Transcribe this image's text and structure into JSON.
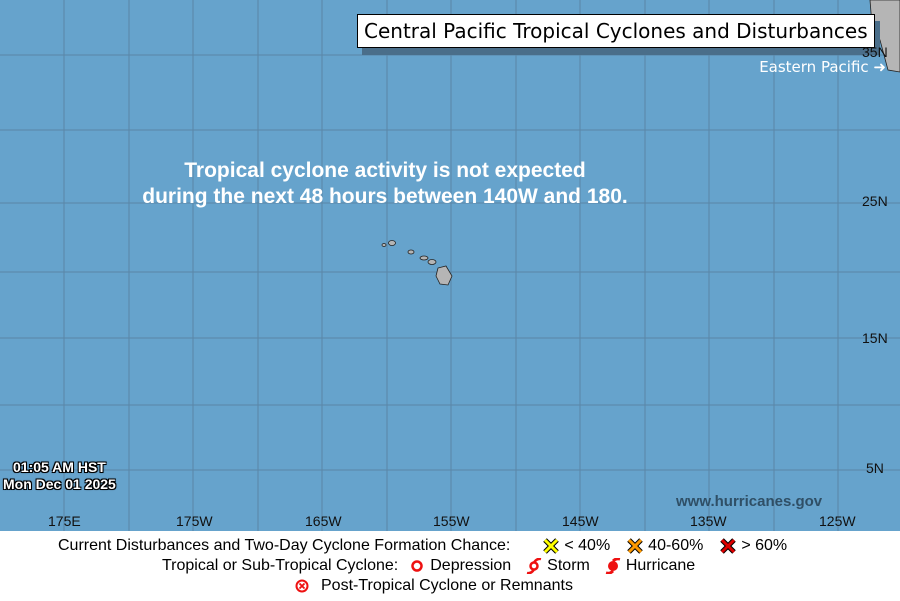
{
  "title": "Central Pacific Tropical Cyclones and Disturbances",
  "eastern_pacific_link": "Eastern Pacific",
  "message_line1": "Tropical cyclone activity is not expected",
  "message_line2": "during the next 48 hours between 140W and 180.",
  "timestamp_time": "01:05 AM HST",
  "timestamp_date": "Mon Dec 01 2025",
  "website": "www.hurricanes.gov",
  "lon_labels": [
    "175E",
    "175W",
    "165W",
    "155W",
    "145W",
    "135W",
    "125W"
  ],
  "lat_labels": [
    "35N",
    "25N",
    "15N",
    "5N"
  ],
  "legend": {
    "disturbances_label": "Current Disturbances and Two-Day Cyclone Formation Chance:",
    "low": "< 40%",
    "medium": "40-60%",
    "high": "> 60%",
    "cyclone_label": "Tropical or Sub-Tropical Cyclone:",
    "depression": "Depression",
    "storm": "Storm",
    "hurricane": "Hurricane",
    "post_tropical": "Post-Tropical Cyclone or Remnants"
  },
  "colors": {
    "ocean": "#66a3cc",
    "low": "#ffff00",
    "medium": "#ff9900",
    "high": "#dd0000",
    "cyclone": "#ee1111"
  }
}
